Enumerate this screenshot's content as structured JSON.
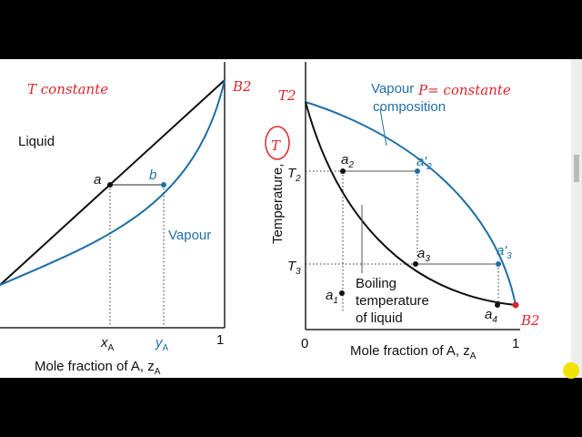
{
  "left_panel": {
    "annotation": "T constante",
    "corner_note": "B2",
    "liquid_label": "Liquid",
    "point_a": "a",
    "point_b": "b",
    "vapour_label": "Vapour",
    "x_tick": {
      "text": "x",
      "sub": "A"
    },
    "y_tick": {
      "text": "y",
      "sub": "A"
    },
    "end_tick": "1",
    "x_label": {
      "text": "Mole fraction of A, z",
      "sub": "A"
    }
  },
  "right_panel": {
    "corner_note": "T2",
    "circled_note": "T",
    "vapour_label": [
      "Vapour",
      "composition"
    ],
    "annotation": "P= constante",
    "y_label": "Temperature,",
    "t2": {
      "text": "T",
      "sub": "2"
    },
    "t3": {
      "text": "T",
      "sub": "3"
    },
    "a1": {
      "text": "a",
      "sub": "1"
    },
    "a2": {
      "text": "a",
      "sub": "2"
    },
    "a2p": {
      "text": "a′",
      "sub": "2"
    },
    "a3": {
      "text": "a",
      "sub": "3"
    },
    "a3p": {
      "text": "a′",
      "sub": "3"
    },
    "a4": {
      "text": "a",
      "sub": "4"
    },
    "boiling_label": [
      "Boiling",
      "temperature",
      "of liquid"
    ],
    "x_start": "0",
    "x_end": "1",
    "x_label": {
      "text": "Mole fraction of A, z",
      "sub": "A"
    },
    "end_note": "B2"
  }
}
